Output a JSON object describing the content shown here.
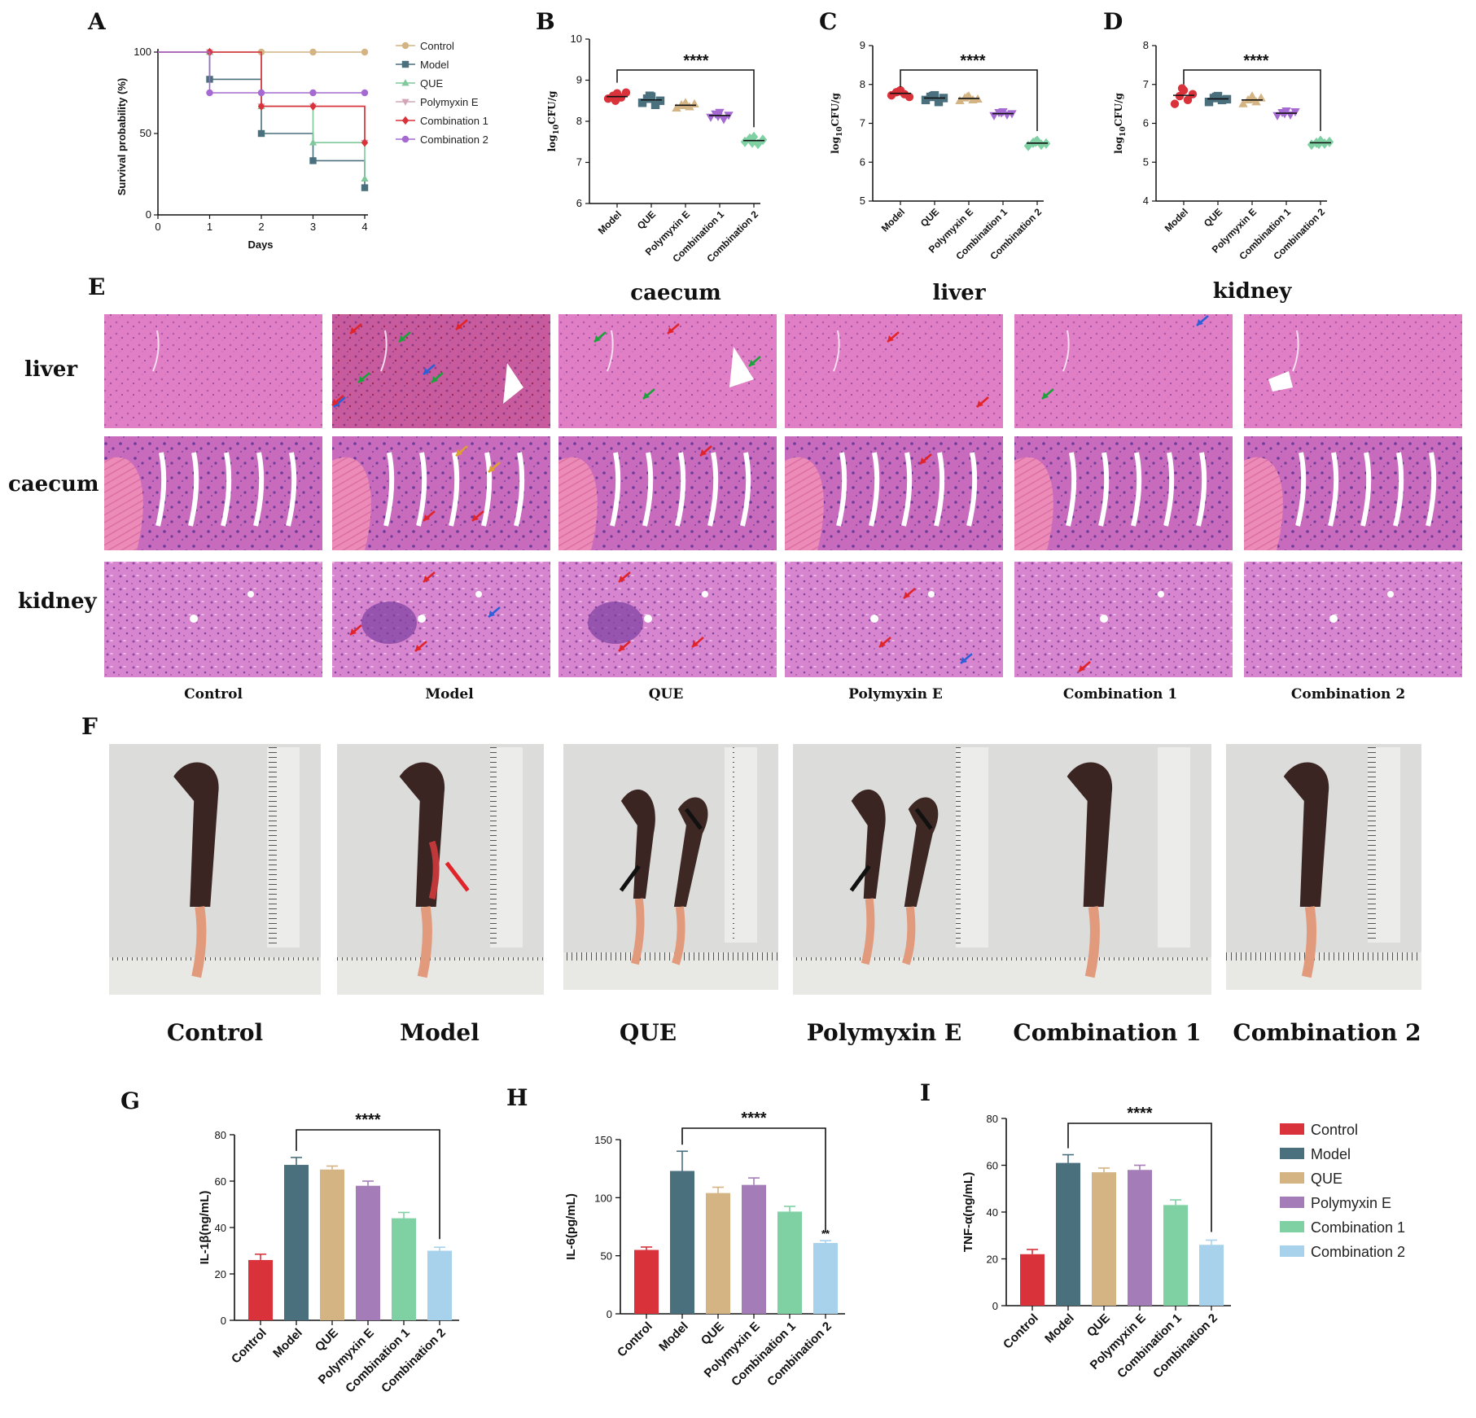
{
  "panel_labels": {
    "A": "A",
    "B": "B",
    "C": "C",
    "D": "D",
    "E": "E",
    "F": "F",
    "G": "G",
    "H": "H",
    "I": "I"
  },
  "chart_data": [
    {
      "id": "A",
      "type": "line",
      "xlabel": "Days",
      "ylabel": "Survival probability (%)",
      "xlim": [
        0,
        4
      ],
      "ylim": [
        0,
        100
      ],
      "x_ticks": [
        0,
        1,
        2,
        3,
        4
      ],
      "y_ticks": [
        0,
        50,
        100
      ],
      "legend_position": "right",
      "series": [
        {
          "name": "Control",
          "color": "#d4b483",
          "marker": "circle",
          "x": [
            0,
            1,
            2,
            3,
            4
          ],
          "y": [
            100,
            100,
            100,
            100,
            100
          ]
        },
        {
          "name": "Model",
          "color": "#4a6f7d",
          "marker": "square",
          "x": [
            0,
            1,
            2,
            3,
            4
          ],
          "y": [
            100,
            83.3,
            50,
            33.3,
            16.7
          ]
        },
        {
          "name": "QUE",
          "color": "#7fc99c",
          "marker": "triangle",
          "x": [
            0,
            1,
            2,
            3,
            4
          ],
          "y": [
            100,
            100,
            66.7,
            44.4,
            22.2
          ]
        },
        {
          "name": "Polymyxin E",
          "color": "#d4a5b8",
          "marker": "triangle-down",
          "x": [
            0,
            1,
            2,
            3,
            4
          ],
          "y": [
            100,
            100,
            66.7,
            66.7,
            44.4
          ]
        },
        {
          "name": "Combination 1",
          "color": "#d9323a",
          "marker": "diamond",
          "x": [
            0,
            1,
            2,
            3,
            4
          ],
          "y": [
            100,
            100,
            66.7,
            66.7,
            44.4
          ]
        },
        {
          "name": "Combination 2",
          "color": "#a46ad1",
          "marker": "circle",
          "x": [
            0,
            1,
            2,
            3,
            4
          ],
          "y": [
            100,
            75,
            75,
            75,
            75
          ]
        }
      ]
    },
    {
      "id": "B",
      "type": "scatter",
      "ylabel_base": "log",
      "ylabel_sub": "10",
      "ylabel_rest": "CFU/g",
      "ylim": [
        6,
        10
      ],
      "y_ticks": [
        6,
        7,
        8,
        9,
        10
      ],
      "categories": [
        "Model",
        "QUE",
        "Polymyxin E",
        "Combination 1",
        "Combination 2"
      ],
      "colors": [
        "#d9323a",
        "#4a6f7d",
        "#d4b483",
        "#a46ad1",
        "#7fd1a4"
      ],
      "markers": [
        "circle",
        "square",
        "triangle",
        "triangle-down",
        "diamond"
      ],
      "points": [
        [
          8.55,
          8.62,
          8.68,
          8.58,
          8.7,
          8.5
        ],
        [
          8.45,
          8.55,
          8.6,
          8.4,
          8.5,
          8.62
        ],
        [
          8.32,
          8.4,
          8.45,
          8.35,
          8.42,
          8.38
        ],
        [
          8.1,
          8.18,
          8.22,
          8.05,
          8.15,
          8.12
        ],
        [
          7.5,
          7.58,
          7.62,
          7.45,
          7.55,
          7.48
        ]
      ],
      "means": [
        8.6,
        8.52,
        8.39,
        8.14,
        7.53
      ],
      "significance": "****",
      "significance_between": [
        "Model",
        "Combination 2"
      ]
    },
    {
      "id": "C",
      "type": "scatter",
      "ylabel_base": "log",
      "ylabel_sub": "10",
      "ylabel_rest": "CFU/g",
      "ylim": [
        5,
        9
      ],
      "y_ticks": [
        5,
        6,
        7,
        8,
        9
      ],
      "categories": [
        "Model",
        "QUE",
        "Polymyxin E",
        "Combination 1",
        "Combination 2"
      ],
      "colors": [
        "#d9323a",
        "#4a6f7d",
        "#d4b483",
        "#a46ad1",
        "#7fd1a4"
      ],
      "markers": [
        "circle",
        "square",
        "triangle",
        "triangle-down",
        "diamond"
      ],
      "points": [
        [
          7.72,
          7.8,
          7.85,
          7.75,
          7.68,
          7.82
        ],
        [
          7.6,
          7.68,
          7.72,
          7.55,
          7.65,
          7.7
        ],
        [
          7.58,
          7.65,
          7.7,
          7.6,
          7.62,
          7.68
        ],
        [
          7.2,
          7.28,
          7.3,
          7.22,
          7.25,
          7.27
        ],
        [
          6.42,
          6.5,
          6.55,
          6.45,
          6.48,
          6.52
        ]
      ],
      "means": [
        7.77,
        7.65,
        7.64,
        7.25,
        6.49
      ],
      "significance": "****",
      "significance_between": [
        "Model",
        "Combination 2"
      ]
    },
    {
      "id": "D",
      "type": "scatter",
      "ylabel_base": "log",
      "ylabel_sub": "10",
      "ylabel_rest": "CFU/g",
      "ylim": [
        4,
        8
      ],
      "y_ticks": [
        4,
        5,
        6,
        7,
        8
      ],
      "categories": [
        "Model",
        "QUE",
        "Polymyxin E",
        "Combination 1",
        "Combination 2"
      ],
      "colors": [
        "#d9323a",
        "#4a6f7d",
        "#d4b483",
        "#a46ad1",
        "#7fd1a4"
      ],
      "markers": [
        "circle",
        "square",
        "triangle",
        "triangle-down",
        "diamond"
      ],
      "points": [
        [
          6.5,
          6.7,
          6.85,
          6.6,
          6.75,
          6.9
        ],
        [
          6.55,
          6.65,
          6.7,
          6.6,
          6.62,
          6.68
        ],
        [
          6.5,
          6.6,
          6.7,
          6.55,
          6.65,
          6.62
        ],
        [
          6.2,
          6.28,
          6.32,
          6.22,
          6.3,
          6.25
        ],
        [
          5.45,
          5.5,
          5.55,
          5.48,
          5.52,
          5.47
        ]
      ],
      "means": [
        6.72,
        6.63,
        6.6,
        6.26,
        5.5
      ],
      "significance": "****",
      "significance_between": [
        "Model",
        "Combination 2"
      ]
    },
    {
      "id": "G",
      "type": "bar",
      "ylabel": "IL-1β(ng/mL)",
      "ylim": [
        0,
        80
      ],
      "y_ticks": [
        0,
        20,
        40,
        60,
        80
      ],
      "categories": [
        "Control",
        "Model",
        "QUE",
        "Polymyxin E",
        "Combination 1",
        "Combination 2"
      ],
      "values": [
        26,
        67,
        65,
        58,
        44,
        30
      ],
      "errors": [
        2.5,
        3.2,
        1.5,
        2,
        2.5,
        1.5
      ],
      "colors": [
        "#d9323a",
        "#4a6f7d",
        "#d4b483",
        "#a47db8",
        "#7fd1a4",
        "#a8d1ec"
      ],
      "significance": "****",
      "significance_between": [
        "Model",
        "Combination 2"
      ]
    },
    {
      "id": "H",
      "type": "bar",
      "ylabel": "IL-6(pg/mL)",
      "ylim": [
        0,
        150
      ],
      "y_ticks": [
        0,
        50,
        100,
        150
      ],
      "categories": [
        "Control",
        "Model",
        "QUE",
        "Polymyxin E",
        "Combination 1",
        "Combination 2"
      ],
      "values": [
        55,
        123,
        104,
        111,
        88,
        61
      ],
      "errors": [
        2.5,
        17,
        5,
        6,
        4.5,
        2
      ],
      "colors": [
        "#d9323a",
        "#4a6f7d",
        "#d4b483",
        "#a47db8",
        "#7fd1a4",
        "#a8d1ec"
      ],
      "significance": "****",
      "significance_between": [
        "Model",
        "Combination 2"
      ],
      "extra_mark": "**"
    },
    {
      "id": "I",
      "type": "bar",
      "ylabel": "TNF-α(ng/mL)",
      "ylim": [
        0,
        80
      ],
      "y_ticks": [
        0,
        20,
        40,
        60,
        80
      ],
      "categories": [
        "Control",
        "Model",
        "QUE",
        "Polymyxin E",
        "Combination 1",
        "Combination 2"
      ],
      "values": [
        22,
        61,
        57,
        58,
        43,
        26
      ],
      "errors": [
        2,
        3.5,
        1.8,
        2,
        2.2,
        2
      ],
      "colors": [
        "#d9323a",
        "#4a6f7d",
        "#d4b483",
        "#a47db8",
        "#7fd1a4",
        "#a8d1ec"
      ],
      "significance": "****",
      "significance_between": [
        "Model",
        "Combination 2"
      ],
      "legend": [
        "Control",
        "Model",
        "QUE",
        "Polymyxin E",
        "Combination 1",
        "Combination 2"
      ],
      "legend_position": "right"
    }
  ],
  "histology": {
    "tissue_headers": [
      "caecum",
      "liver",
      "kidney"
    ],
    "rows": [
      "liver",
      "caecum",
      "kidney"
    ],
    "columns": [
      "Control",
      "Model",
      "QUE",
      "Polymyxin E",
      "Combination 1",
      "Combination 2"
    ]
  },
  "gross": {
    "columns": [
      "Control",
      "Model",
      "QUE",
      "Polymyxin E",
      "Combination 1",
      "Combination 2"
    ]
  }
}
